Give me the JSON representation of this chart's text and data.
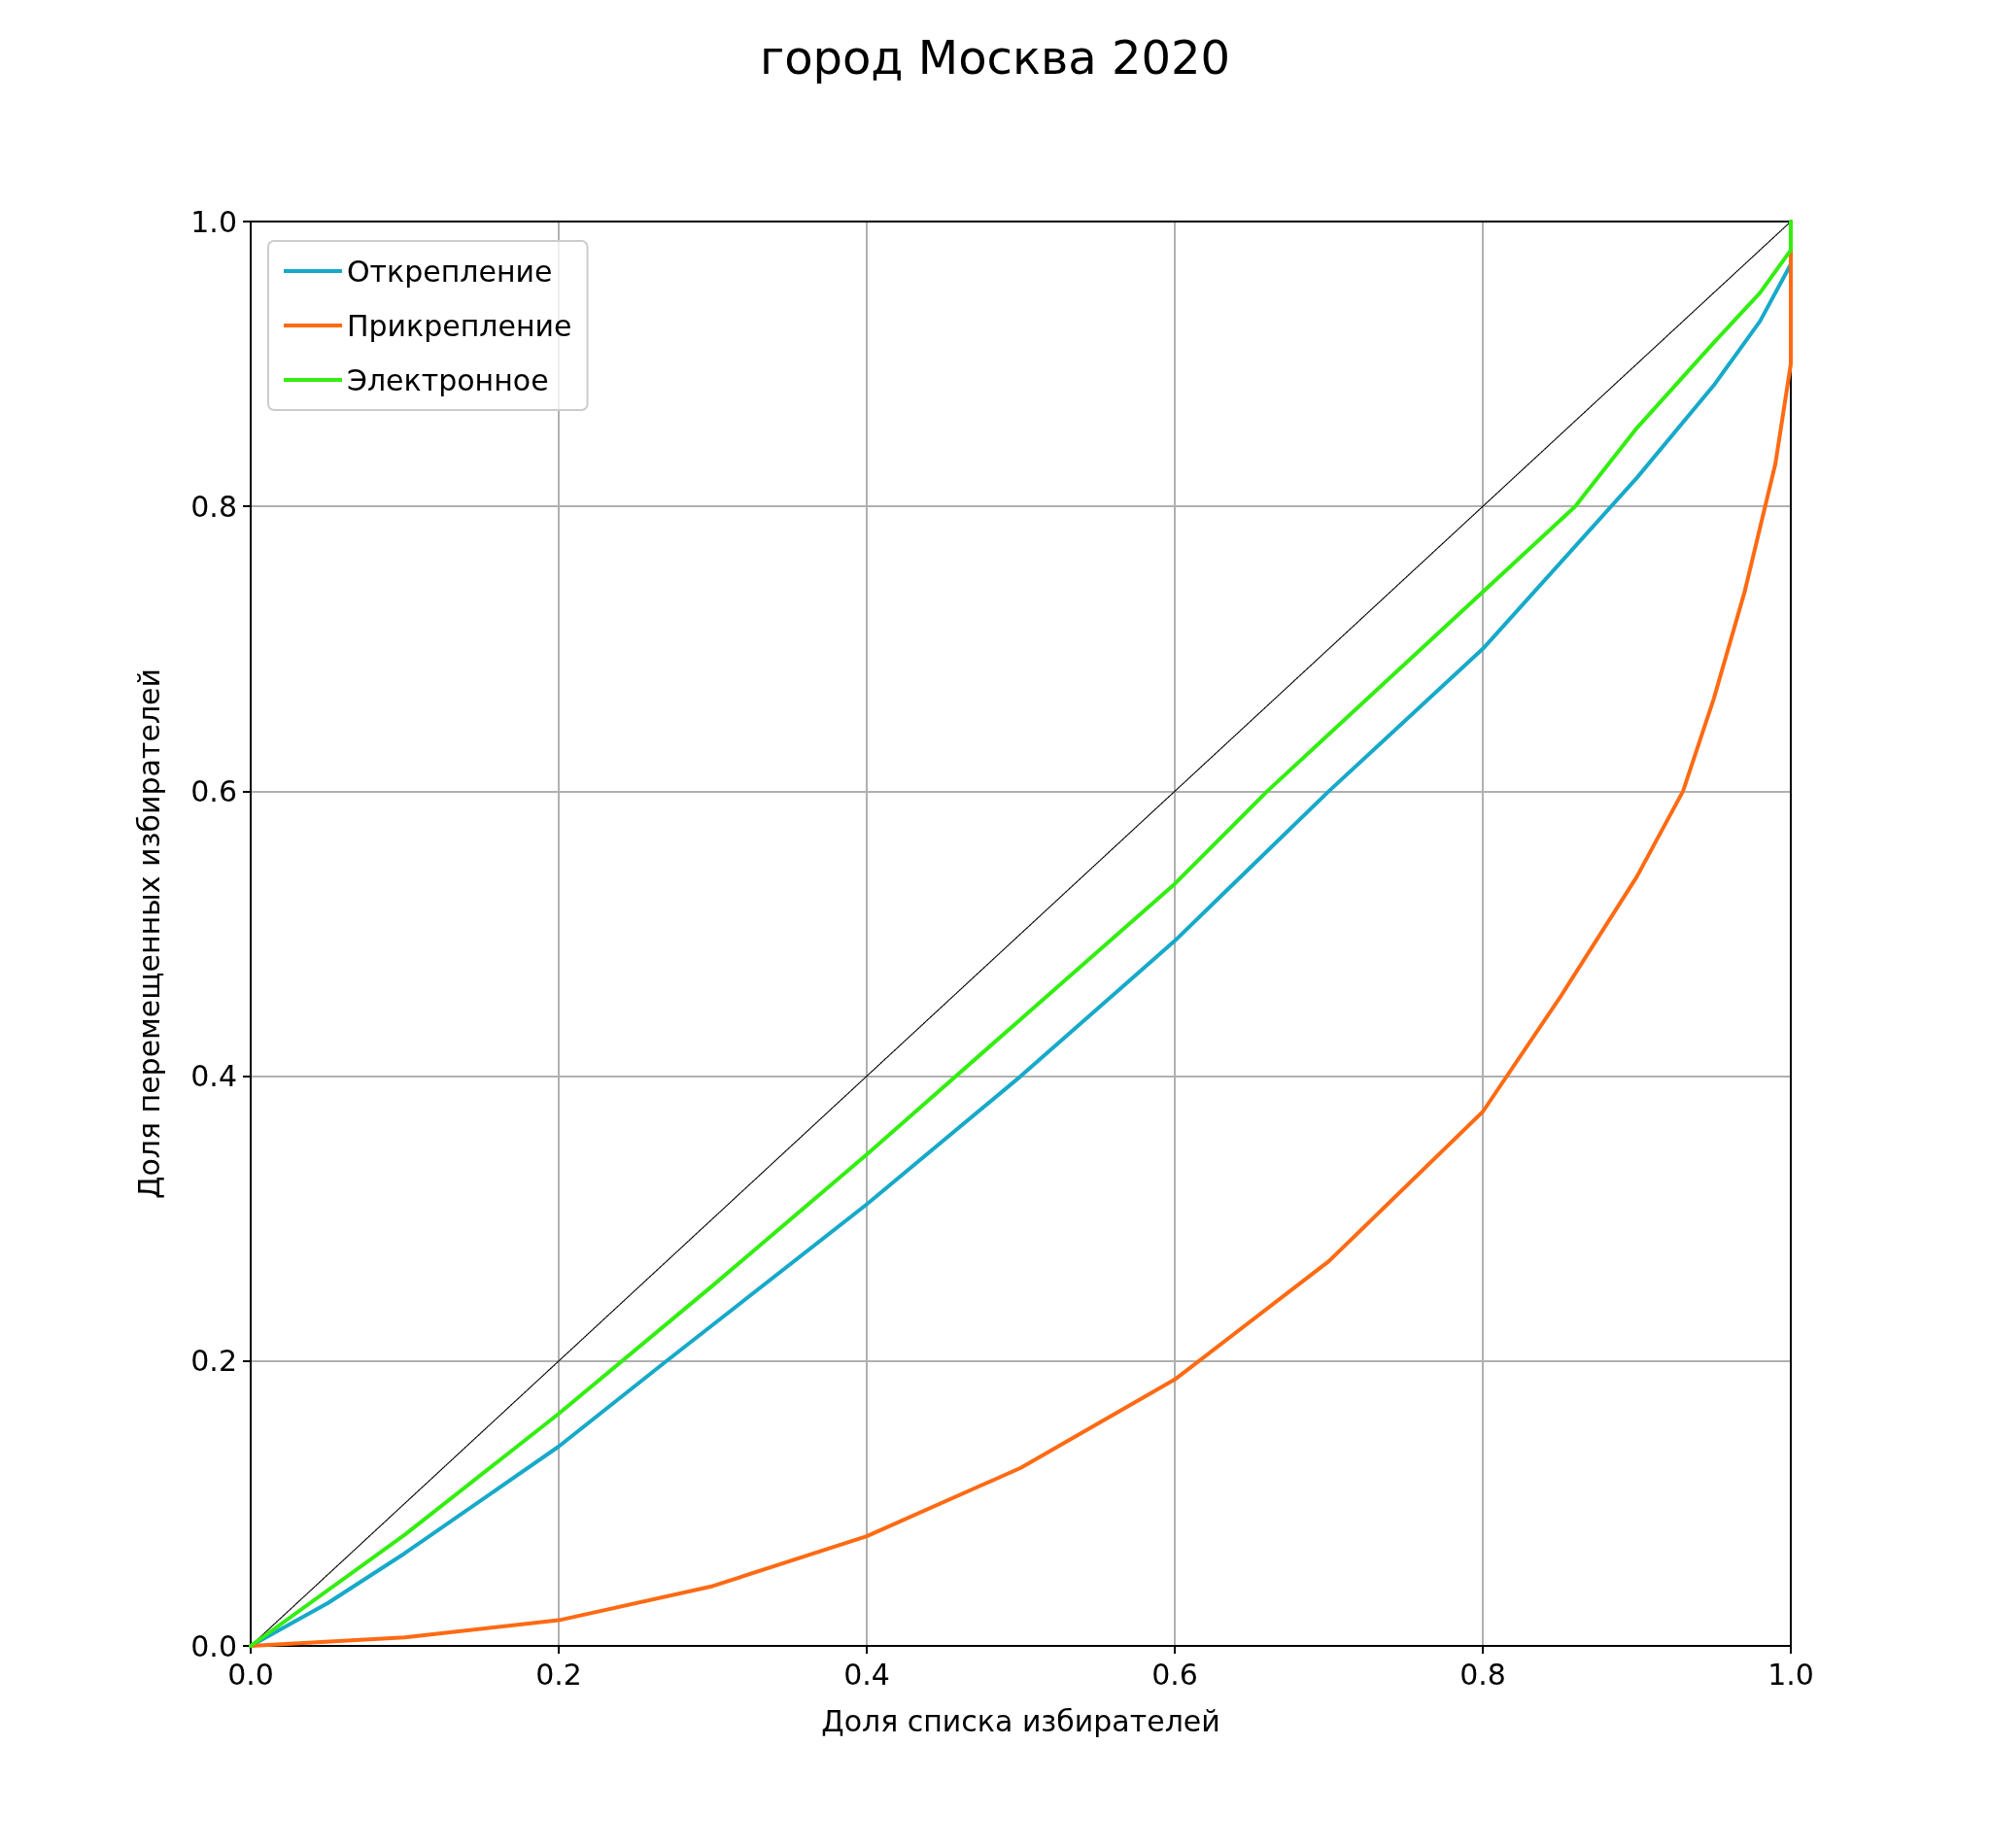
{
  "chart_data": {
    "type": "line",
    "title": "город Москва 2020",
    "xlabel": "Доля списка избирателей",
    "ylabel": "Доля перемещенных избирателей",
    "xlim": [
      0,
      1
    ],
    "ylim": [
      0,
      1
    ],
    "xticks": [
      {
        "value": 0,
        "label": "0.0"
      },
      {
        "value": 0.2,
        "label": "0.2"
      },
      {
        "value": 0.4,
        "label": "0.4"
      },
      {
        "value": 0.6,
        "label": "0.6"
      },
      {
        "value": 0.8,
        "label": "0.8"
      },
      {
        "value": 1,
        "label": "1.0"
      }
    ],
    "yticks": [
      {
        "value": 0,
        "label": "0.0"
      },
      {
        "value": 0.2,
        "label": "0.2"
      },
      {
        "value": 0.4,
        "label": "0.4"
      },
      {
        "value": 0.6,
        "label": "0.6"
      },
      {
        "value": 0.8,
        "label": "0.8"
      },
      {
        "value": 1,
        "label": "1.0"
      }
    ],
    "grid": true,
    "legend": "top left",
    "marker": "none",
    "series": [
      {
        "name": "Открепление",
        "color": "#17a9c9",
        "x": [
          0,
          0.05,
          0.1,
          0.2,
          0.27,
          0.4,
          0.5,
          0.6,
          0.7,
          0.8,
          0.9,
          0.95,
          0.98,
          1,
          1
        ],
        "values": [
          0,
          0.03,
          0.065,
          0.14,
          0.2,
          0.31,
          0.4,
          0.495,
          0.6,
          0.7,
          0.82,
          0.885,
          0.93,
          0.97,
          1
        ]
      },
      {
        "name": "Прикрепление",
        "color": "#ff6a13",
        "x": [
          0,
          0.1,
          0.2,
          0.3,
          0.4,
          0.5,
          0.6,
          0.7,
          0.8,
          0.85,
          0.9,
          0.93,
          0.95,
          0.97,
          0.99,
          1,
          1
        ],
        "values": [
          0,
          0.006,
          0.018,
          0.042,
          0.077,
          0.125,
          0.187,
          0.27,
          0.375,
          0.455,
          0.54,
          0.6,
          0.665,
          0.74,
          0.83,
          0.9,
          1
        ]
      },
      {
        "name": "Электронное",
        "color": "#33ee10",
        "x": [
          0,
          0.1,
          0.2,
          0.3,
          0.4,
          0.5,
          0.6,
          0.66,
          0.7,
          0.8,
          0.86,
          0.9,
          0.95,
          0.98,
          1,
          1
        ],
        "values": [
          0,
          0.078,
          0.163,
          0.253,
          0.345,
          0.44,
          0.535,
          0.6,
          0.64,
          0.74,
          0.8,
          0.855,
          0.915,
          0.95,
          0.98,
          1
        ]
      },
      {
        "color": "#000000",
        "line_style": "dotted",
        "x": [
          0,
          1
        ],
        "values": [
          0,
          1
        ]
      }
    ]
  }
}
